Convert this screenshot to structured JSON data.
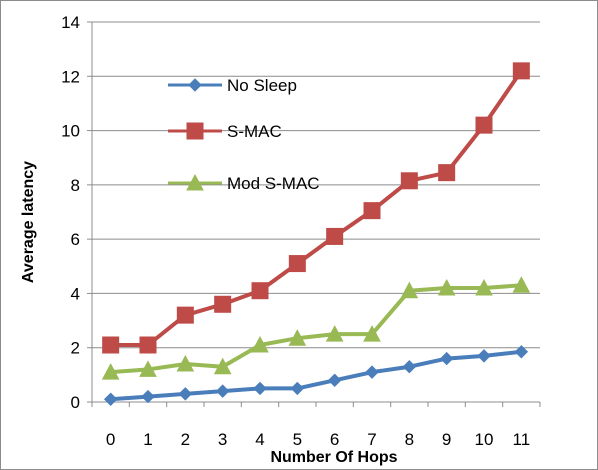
{
  "chart_data": {
    "type": "line",
    "xlabel": "Number Of Hops",
    "ylabel": "Average latency",
    "categories": [
      "0",
      "1",
      "2",
      "3",
      "4",
      "5",
      "6",
      "7",
      "8",
      "9",
      "10",
      "11"
    ],
    "ylim": [
      0,
      14
    ],
    "yticks": [
      0,
      2,
      4,
      6,
      8,
      10,
      12,
      14
    ],
    "grid": true,
    "legend_position": "inside-top-left",
    "series": [
      {
        "name": "No Sleep",
        "color": "#4a7ebb",
        "marker": "diamond",
        "values": [
          0.1,
          0.2,
          0.3,
          0.4,
          0.5,
          0.5,
          0.8,
          1.1,
          1.3,
          1.6,
          1.7,
          1.85
        ]
      },
      {
        "name": "S-MAC",
        "color": "#be4b48",
        "marker": "square",
        "values": [
          2.1,
          2.1,
          3.2,
          3.6,
          4.1,
          5.1,
          6.1,
          7.05,
          8.15,
          8.45,
          10.2,
          12.2
        ]
      },
      {
        "name": "Mod S-MAC",
        "color": "#98b954",
        "marker": "triangle",
        "values": [
          1.1,
          1.2,
          1.4,
          1.3,
          2.1,
          2.35,
          2.5,
          2.5,
          4.1,
          4.2,
          4.2,
          4.3
        ]
      }
    ]
  }
}
